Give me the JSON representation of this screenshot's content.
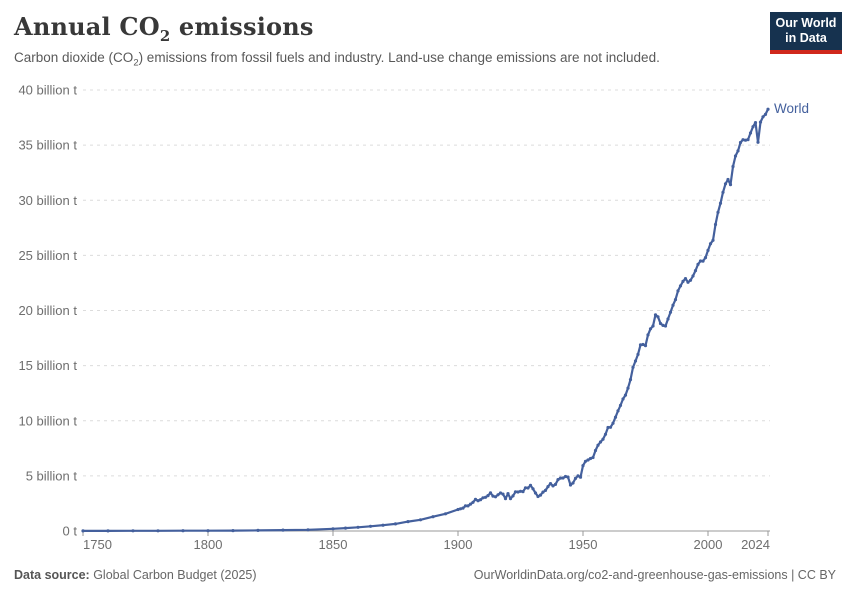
{
  "header": {
    "title_pre": "Annual CO",
    "title_sub": "2",
    "title_post": " emissions",
    "subtitle_pre": "Carbon dioxide (CO",
    "subtitle_sub": "2",
    "subtitle_post": ") emissions from fossil fuels and industry. Land-use change emissions are not included.",
    "logo": {
      "line1": "Our World",
      "line2": "in Data",
      "bg_color": "#16324F",
      "accent_color": "#D0281C"
    }
  },
  "footer": {
    "source_label": "Data source:",
    "source_value": " Global Carbon Budget (2025)",
    "attribution": "OurWorldinData.org/co2-and-greenhouse-gas-emissions | CC BY"
  },
  "chart_data": {
    "type": "line",
    "title": "Annual CO2 emissions",
    "series_label": "World",
    "unit": "billion tonnes",
    "line_color": "#44609D",
    "grid": true,
    "legend_position": "end-of-line",
    "xlim": [
      1750,
      2024
    ],
    "ylim": [
      0,
      40
    ],
    "y_ticks": [
      {
        "value": 0,
        "label": "0 t"
      },
      {
        "value": 5,
        "label": "5 billion t"
      },
      {
        "value": 10,
        "label": "10 billion t"
      },
      {
        "value": 15,
        "label": "15 billion t"
      },
      {
        "value": 20,
        "label": "20 billion t"
      },
      {
        "value": 25,
        "label": "25 billion t"
      },
      {
        "value": 30,
        "label": "30 billion t"
      },
      {
        "value": 35,
        "label": "35 billion t"
      },
      {
        "value": 40,
        "label": "40 billion t"
      }
    ],
    "x_ticks": [
      {
        "value": 1750,
        "label": "1750"
      },
      {
        "value": 1800,
        "label": "1800"
      },
      {
        "value": 1850,
        "label": "1850"
      },
      {
        "value": 1900,
        "label": "1900"
      },
      {
        "value": 1950,
        "label": "1950"
      },
      {
        "value": 2000,
        "label": "2000"
      },
      {
        "value": 2024,
        "label": "2024"
      }
    ],
    "points": [
      [
        1750,
        0.01
      ],
      [
        1760,
        0.01
      ],
      [
        1770,
        0.02
      ],
      [
        1780,
        0.02
      ],
      [
        1790,
        0.03
      ],
      [
        1800,
        0.03
      ],
      [
        1810,
        0.04
      ],
      [
        1820,
        0.05
      ],
      [
        1830,
        0.08
      ],
      [
        1840,
        0.11
      ],
      [
        1850,
        0.2
      ],
      [
        1855,
        0.26
      ],
      [
        1860,
        0.34
      ],
      [
        1865,
        0.43
      ],
      [
        1870,
        0.53
      ],
      [
        1875,
        0.64
      ],
      [
        1880,
        0.85
      ],
      [
        1885,
        1.02
      ],
      [
        1890,
        1.3
      ],
      [
        1895,
        1.56
      ],
      [
        1900,
        1.95
      ],
      [
        1901,
        2.01
      ],
      [
        1902,
        2.08
      ],
      [
        1903,
        2.28
      ],
      [
        1904,
        2.28
      ],
      [
        1905,
        2.44
      ],
      [
        1906,
        2.6
      ],
      [
        1907,
        2.87
      ],
      [
        1908,
        2.75
      ],
      [
        1909,
        2.84
      ],
      [
        1910,
        3.01
      ],
      [
        1911,
        3.06
      ],
      [
        1912,
        3.21
      ],
      [
        1913,
        3.46
      ],
      [
        1914,
        3.17
      ],
      [
        1915,
        3.1
      ],
      [
        1916,
        3.28
      ],
      [
        1917,
        3.45
      ],
      [
        1918,
        3.35
      ],
      [
        1919,
        2.94
      ],
      [
        1920,
        3.39
      ],
      [
        1921,
        2.94
      ],
      [
        1922,
        3.18
      ],
      [
        1923,
        3.56
      ],
      [
        1924,
        3.54
      ],
      [
        1925,
        3.6
      ],
      [
        1926,
        3.57
      ],
      [
        1927,
        3.92
      ],
      [
        1928,
        3.9
      ],
      [
        1929,
        4.14
      ],
      [
        1930,
        3.83
      ],
      [
        1931,
        3.45
      ],
      [
        1932,
        3.13
      ],
      [
        1933,
        3.26
      ],
      [
        1934,
        3.53
      ],
      [
        1935,
        3.68
      ],
      [
        1936,
        4.03
      ],
      [
        1937,
        4.3
      ],
      [
        1938,
        4.09
      ],
      [
        1939,
        4.23
      ],
      [
        1940,
        4.66
      ],
      [
        1941,
        4.8
      ],
      [
        1942,
        4.81
      ],
      [
        1943,
        4.94
      ],
      [
        1944,
        4.89
      ],
      [
        1945,
        4.17
      ],
      [
        1946,
        4.35
      ],
      [
        1947,
        4.77
      ],
      [
        1948,
        5.0
      ],
      [
        1949,
        4.88
      ],
      [
        1950,
        5.93
      ],
      [
        1951,
        6.32
      ],
      [
        1952,
        6.44
      ],
      [
        1953,
        6.58
      ],
      [
        1954,
        6.67
      ],
      [
        1955,
        7.3
      ],
      [
        1956,
        7.78
      ],
      [
        1957,
        8.07
      ],
      [
        1958,
        8.33
      ],
      [
        1959,
        8.77
      ],
      [
        1960,
        9.39
      ],
      [
        1961,
        9.41
      ],
      [
        1962,
        9.78
      ],
      [
        1963,
        10.32
      ],
      [
        1964,
        10.89
      ],
      [
        1965,
        11.39
      ],
      [
        1966,
        11.97
      ],
      [
        1967,
        12.33
      ],
      [
        1968,
        12.96
      ],
      [
        1969,
        13.73
      ],
      [
        1970,
        14.85
      ],
      [
        1971,
        15.42
      ],
      [
        1972,
        16.02
      ],
      [
        1973,
        16.88
      ],
      [
        1974,
        16.92
      ],
      [
        1975,
        16.82
      ],
      [
        1976,
        17.79
      ],
      [
        1977,
        18.34
      ],
      [
        1978,
        18.59
      ],
      [
        1979,
        19.61
      ],
      [
        1980,
        19.42
      ],
      [
        1981,
        18.82
      ],
      [
        1982,
        18.65
      ],
      [
        1983,
        18.59
      ],
      [
        1984,
        19.23
      ],
      [
        1985,
        19.85
      ],
      [
        1986,
        20.48
      ],
      [
        1987,
        20.99
      ],
      [
        1988,
        21.78
      ],
      [
        1989,
        22.23
      ],
      [
        1990,
        22.64
      ],
      [
        1991,
        22.89
      ],
      [
        1992,
        22.56
      ],
      [
        1993,
        22.74
      ],
      [
        1994,
        23.13
      ],
      [
        1995,
        23.62
      ],
      [
        1996,
        24.18
      ],
      [
        1997,
        24.49
      ],
      [
        1998,
        24.48
      ],
      [
        1999,
        24.8
      ],
      [
        2000,
        25.45
      ],
      [
        2001,
        26.06
      ],
      [
        2002,
        26.37
      ],
      [
        2003,
        27.8
      ],
      [
        2004,
        28.91
      ],
      [
        2005,
        29.73
      ],
      [
        2006,
        30.72
      ],
      [
        2007,
        31.49
      ],
      [
        2008,
        31.88
      ],
      [
        2009,
        31.42
      ],
      [
        2010,
        33.06
      ],
      [
        2011,
        34.01
      ],
      [
        2012,
        34.48
      ],
      [
        2013,
        35.24
      ],
      [
        2014,
        35.49
      ],
      [
        2015,
        35.45
      ],
      [
        2016,
        35.5
      ],
      [
        2017,
        36.1
      ],
      [
        2018,
        36.67
      ],
      [
        2019,
        37.04
      ],
      [
        2020,
        35.26
      ],
      [
        2021,
        37.09
      ],
      [
        2022,
        37.57
      ],
      [
        2023,
        37.79
      ],
      [
        2024,
        38.26
      ]
    ]
  }
}
